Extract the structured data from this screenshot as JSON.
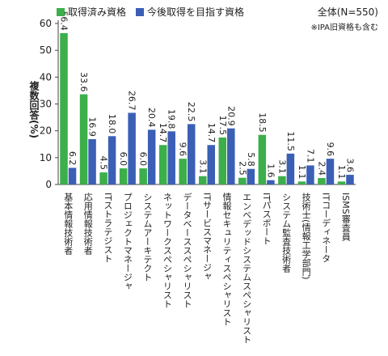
{
  "chart_data": {
    "type": "bar",
    "note_total": "全体(N=550)",
    "note_ipa": "※IPA旧資格も含む",
    "ylabel": "複数回答(%)",
    "ylim": [
      0,
      60
    ],
    "yticks": [
      0,
      10,
      20,
      30,
      40,
      50,
      60
    ],
    "grid": false,
    "legend_position": "top-left",
    "colors": {
      "series_0": "#3cae4a",
      "series_1": "#3b5fb5",
      "axis": "#444444"
    },
    "categories": [
      "基本情報技術者",
      "応用情報技術者",
      "ITストラテジスト",
      "プロジェクトマネージャ",
      "システムアーキテクト",
      "ネットワークスペシャリスト",
      "データベーススペシャリスト",
      "ITサービスマネージャ",
      "情報セキュリティスペシャリスト",
      "エンベデッドシステムスペシャリスト",
      "ITパスポート",
      "システム監査技術者",
      "技術士(情報工学部門)",
      "ITコーディネータ",
      "ISMS審査員"
    ],
    "series": [
      {
        "name": "取得済み資格",
        "values": [
          56.4,
          33.6,
          4.5,
          6.0,
          6.0,
          14.7,
          9.6,
          3.1,
          17.5,
          2.5,
          18.5,
          3.1,
          1.1,
          2.4,
          1.1
        ]
      },
      {
        "name": "今後取得を目指す資格",
        "values": [
          6.2,
          16.9,
          18.0,
          26.7,
          20.4,
          19.8,
          22.5,
          14.7,
          20.9,
          5.8,
          1.6,
          11.5,
          7.1,
          9.6,
          3.6
        ]
      }
    ]
  }
}
